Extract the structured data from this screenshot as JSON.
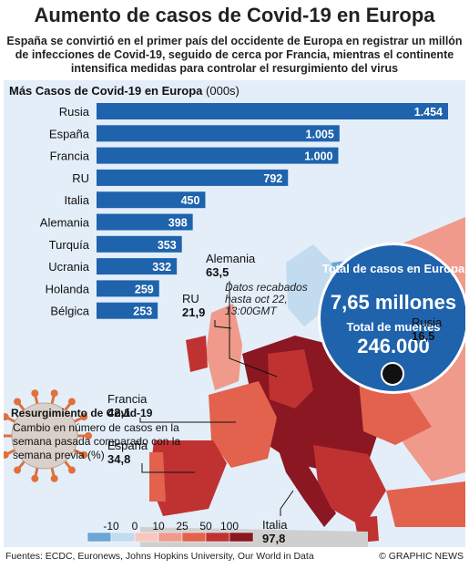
{
  "title": "Aumento de casos de Covid-19 en Europa",
  "subtitle": "España se convirtió en el primer país del occidente de Europa en registrar un millón de infecciones de Covid-19, seguido de cerca por Francia, mientras el continente intensifica medidas para controlar el resurgimiento del virus",
  "chart_data": [
    {
      "type": "bar",
      "title": "Más Casos de Covid-19 en Europa",
      "unit": "(000s)",
      "categories": [
        "Rusia",
        "España",
        "Francia",
        "RU",
        "Italia",
        "Alemania",
        "Turquía",
        "Ucrania",
        "Holanda",
        "Bélgica"
      ],
      "values": [
        1454,
        1005,
        1000,
        792,
        450,
        398,
        353,
        332,
        259,
        253
      ],
      "value_labels": [
        "1.454",
        "1.005",
        "1.000",
        "792",
        "450",
        "398",
        "353",
        "332",
        "259",
        "253"
      ],
      "xlim": [
        0,
        1454
      ]
    },
    {
      "type": "map",
      "title": "Resurgimiento de Covid-19",
      "description": "Cambio en número de casos en la semana pasada comparado con la semana previa (%)",
      "legend_ticks": [
        "-10",
        "0",
        "10",
        "25",
        "50",
        "100"
      ],
      "legend_colors": [
        "#6aa7d6",
        "#c2dbef",
        "#f6c8c0",
        "#ef9a8a",
        "#e2624e",
        "#c03232",
        "#8a1721"
      ],
      "labels": [
        {
          "name": "Alemania",
          "value": "63,5"
        },
        {
          "name": "RU",
          "value": "21,9"
        },
        {
          "name": "Rusia",
          "value": "16,5"
        },
        {
          "name": "Francia",
          "value": "42,1"
        },
        {
          "name": "España",
          "value": "34,8"
        },
        {
          "name": "Italia",
          "value": "97,8"
        }
      ]
    }
  ],
  "note": "Datos recabados hasta oct 22, 13:00GMT",
  "totals": {
    "cases_label": "Total de casos en Europa",
    "cases_value": "7,65 millones",
    "deaths_label": "Total de muertes",
    "deaths_value": "246.000"
  },
  "watermark": "GRAPHIC NEWS",
  "footer": {
    "sources": "Fuentes: ECDC, Euronews, Johns Hopkins University, Our World in Data",
    "credit": "© GRAPHIC NEWS"
  },
  "colors": {
    "bar": "#1f63ad",
    "panel": "#e3eef9",
    "accent_dark": "#1f63ad"
  }
}
